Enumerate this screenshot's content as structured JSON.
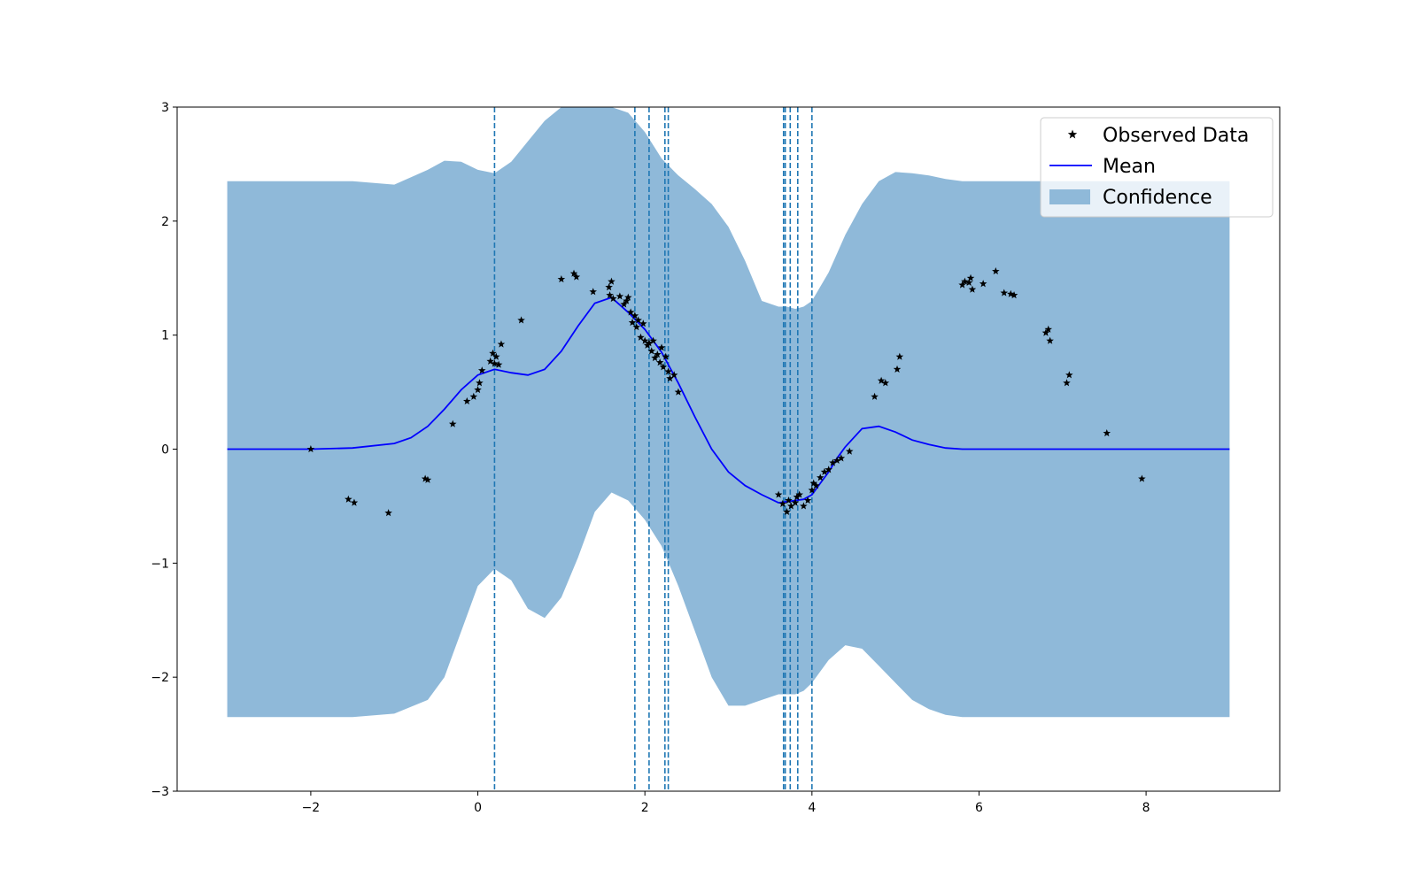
{
  "chart_data": {
    "type": "line",
    "title": "",
    "xlabel": "",
    "ylabel": "",
    "xlim": [
      -3.6,
      9.6
    ],
    "ylim": [
      -3,
      3
    ],
    "x_ticks": [
      -2,
      0,
      2,
      4,
      6,
      8
    ],
    "y_ticks": [
      -3,
      -2,
      -1,
      0,
      1,
      2,
      3
    ],
    "x_tick_labels": [
      "−2",
      "0",
      "2",
      "4",
      "6",
      "8"
    ],
    "y_tick_labels": [
      "−3",
      "−2",
      "−1",
      "0",
      "1",
      "2",
      "3"
    ],
    "grid": false,
    "legend_position": "top-right",
    "colors": {
      "mean": "#0000ff",
      "confidence": "#8fb9d9",
      "observed": "#000000",
      "vlines": "#1f77b4"
    },
    "legend": [
      {
        "label": "Observed Data",
        "kind": "marker"
      },
      {
        "label": "Mean",
        "kind": "line"
      },
      {
        "label": "Confidence",
        "kind": "patch"
      }
    ],
    "series": [
      {
        "name": "Mean",
        "x": [
          -3.0,
          -2.0,
          -1.5,
          -1.0,
          -0.8,
          -0.6,
          -0.4,
          -0.2,
          0.0,
          0.2,
          0.4,
          0.6,
          0.8,
          1.0,
          1.2,
          1.4,
          1.6,
          1.8,
          2.0,
          2.2,
          2.4,
          2.6,
          2.8,
          3.0,
          3.2,
          3.4,
          3.6,
          3.7,
          3.8,
          3.9,
          4.0,
          4.1,
          4.2,
          4.3,
          4.4,
          4.6,
          4.8,
          5.0,
          5.2,
          5.4,
          5.6,
          5.8,
          6.0,
          7.0,
          8.0,
          9.0
        ],
        "y": [
          0,
          0,
          0.01,
          0.05,
          0.1,
          0.2,
          0.35,
          0.52,
          0.65,
          0.7,
          0.67,
          0.65,
          0.7,
          0.86,
          1.08,
          1.28,
          1.33,
          1.2,
          1.05,
          0.85,
          0.58,
          0.28,
          0.0,
          -0.2,
          -0.32,
          -0.4,
          -0.47,
          -0.46,
          -0.45,
          -0.44,
          -0.4,
          -0.3,
          -0.2,
          -0.08,
          0.02,
          0.18,
          0.2,
          0.15,
          0.08,
          0.04,
          0.01,
          0,
          0,
          0,
          0,
          0
        ]
      },
      {
        "name": "Confidence",
        "x": [
          -3.0,
          -2.0,
          -1.5,
          -1.0,
          -0.6,
          -0.4,
          -0.2,
          0.0,
          0.2,
          0.4,
          0.6,
          0.8,
          1.0,
          1.2,
          1.4,
          1.6,
          1.8,
          2.0,
          2.2,
          2.4,
          2.6,
          2.8,
          3.0,
          3.2,
          3.4,
          3.6,
          3.7,
          3.8,
          3.9,
          4.0,
          4.2,
          4.4,
          4.6,
          4.8,
          5.0,
          5.2,
          5.4,
          5.6,
          5.8,
          6.0,
          7.0,
          8.0,
          9.0
        ],
        "lower": [
          -2.35,
          -2.35,
          -2.35,
          -2.32,
          -2.2,
          -2.0,
          -1.6,
          -1.2,
          -1.05,
          -1.15,
          -1.4,
          -1.48,
          -1.3,
          -0.95,
          -0.55,
          -0.38,
          -0.45,
          -0.62,
          -0.85,
          -1.2,
          -1.6,
          -2.0,
          -2.25,
          -2.25,
          -2.2,
          -2.15,
          -2.15,
          -2.15,
          -2.12,
          -2.05,
          -1.85,
          -1.72,
          -1.75,
          -1.9,
          -2.05,
          -2.2,
          -2.28,
          -2.33,
          -2.35,
          -2.35,
          -2.35,
          -2.35,
          -2.35
        ],
        "upper": [
          2.35,
          2.35,
          2.35,
          2.32,
          2.45,
          2.53,
          2.52,
          2.45,
          2.42,
          2.52,
          2.7,
          2.88,
          3.0,
          3.0,
          3.0,
          3.0,
          2.95,
          2.78,
          2.55,
          2.4,
          2.28,
          2.15,
          1.95,
          1.65,
          1.3,
          1.25,
          1.25,
          1.23,
          1.25,
          1.3,
          1.55,
          1.88,
          2.15,
          2.35,
          2.43,
          2.42,
          2.4,
          2.37,
          2.35,
          2.35,
          2.35,
          2.35,
          2.35
        ]
      },
      {
        "name": "Observed Data",
        "x": [
          -2.0,
          -1.55,
          -1.48,
          -1.07,
          -0.63,
          -0.6,
          -0.3,
          -0.13,
          -0.05,
          0.0,
          0.02,
          0.05,
          0.15,
          0.18,
          0.2,
          0.22,
          0.25,
          0.28,
          0.52,
          1.0,
          1.15,
          1.18,
          1.38,
          1.57,
          1.58,
          1.6,
          1.62,
          1.7,
          1.75,
          1.78,
          1.8,
          1.83,
          1.85,
          1.88,
          1.9,
          1.92,
          1.95,
          1.98,
          2.0,
          2.03,
          2.05,
          2.08,
          2.1,
          2.12,
          2.15,
          2.18,
          2.2,
          2.22,
          2.25,
          2.28,
          2.3,
          2.35,
          2.4,
          3.6,
          3.65,
          3.7,
          3.72,
          3.75,
          3.8,
          3.82,
          3.85,
          3.9,
          3.95,
          4.0,
          4.02,
          4.05,
          4.1,
          4.15,
          4.2,
          4.25,
          4.3,
          4.35,
          4.45,
          4.75,
          4.83,
          4.88,
          5.02,
          5.05,
          5.8,
          5.83,
          5.88,
          5.9,
          5.92,
          6.05,
          6.2,
          6.3,
          6.38,
          6.42,
          6.8,
          6.83,
          6.85,
          7.05,
          7.08,
          7.53,
          7.95
        ],
        "y": [
          0.0,
          -0.44,
          -0.47,
          -0.56,
          -0.26,
          -0.27,
          0.22,
          0.42,
          0.46,
          0.52,
          0.58,
          0.69,
          0.77,
          0.84,
          0.75,
          0.81,
          0.74,
          0.92,
          1.13,
          1.49,
          1.54,
          1.51,
          1.38,
          1.42,
          1.35,
          1.47,
          1.32,
          1.34,
          1.27,
          1.3,
          1.33,
          1.2,
          1.11,
          1.17,
          1.07,
          1.13,
          0.98,
          1.1,
          0.95,
          0.91,
          0.93,
          0.86,
          0.95,
          0.8,
          0.83,
          0.76,
          0.89,
          0.72,
          0.81,
          0.68,
          0.62,
          0.65,
          0.5,
          -0.4,
          -0.48,
          -0.55,
          -0.45,
          -0.5,
          -0.47,
          -0.42,
          -0.4,
          -0.5,
          -0.45,
          -0.36,
          -0.3,
          -0.32,
          -0.25,
          -0.2,
          -0.18,
          -0.12,
          -0.1,
          -0.08,
          -0.02,
          0.46,
          0.6,
          0.58,
          0.7,
          0.81,
          1.44,
          1.47,
          1.46,
          1.5,
          1.4,
          1.45,
          1.56,
          1.37,
          1.36,
          1.35,
          1.02,
          1.05,
          0.95,
          0.58,
          0.65,
          0.14,
          -0.26
        ]
      }
    ],
    "vertical_lines_x": [
      0.2,
      1.88,
      2.05,
      2.24,
      2.28,
      3.66,
      3.68,
      3.74,
      3.83,
      4.0
    ]
  }
}
